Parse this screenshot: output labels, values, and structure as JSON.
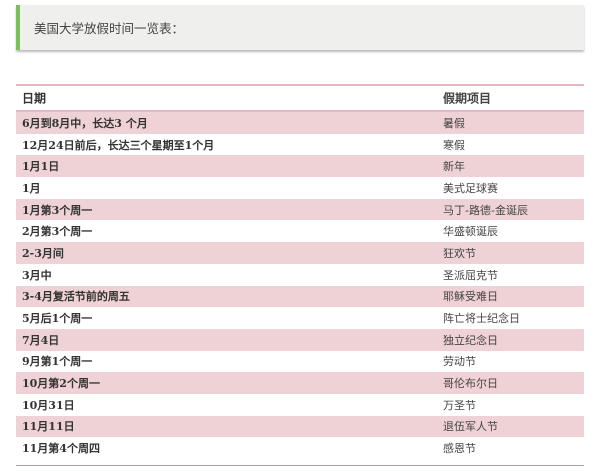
{
  "banner": {
    "text": "美国大学放假时间一览表："
  },
  "table": {
    "headers": [
      "日期",
      "假期项目"
    ],
    "rows": [
      [
        "6月到8月中，长达3  个月",
        "暑假"
      ],
      [
        "12月24日前后，长达三个星期至1个月",
        "寒假"
      ],
      [
        "1月1日",
        "新年"
      ],
      [
        "1月",
        "美式足球赛"
      ],
      [
        "1月第3个周一",
        "马丁-路德-金诞辰"
      ],
      [
        "2月第3个周一",
        "华盛顿诞辰"
      ],
      [
        "2-3月间",
        "狂欢节"
      ],
      [
        "3月中",
        "圣派屈克节"
      ],
      [
        "3-4月复活节前的周五",
        "耶稣受难日"
      ],
      [
        "5月后1个周一",
        "阵亡将士纪念日"
      ],
      [
        "7月4日",
        "独立纪念日"
      ],
      [
        "9月第1个周一",
        "劳动节"
      ],
      [
        "10月第2个周一",
        "哥伦布尔日"
      ],
      [
        "10月31日",
        "万圣节"
      ],
      [
        "11月11日",
        "退伍军人节"
      ],
      [
        "11月第4个周四",
        "感恩节"
      ]
    ]
  },
  "colors": {
    "accent": "#7cc05a",
    "row_alt": "#efd2d5",
    "rule": "#e3b9bf"
  }
}
